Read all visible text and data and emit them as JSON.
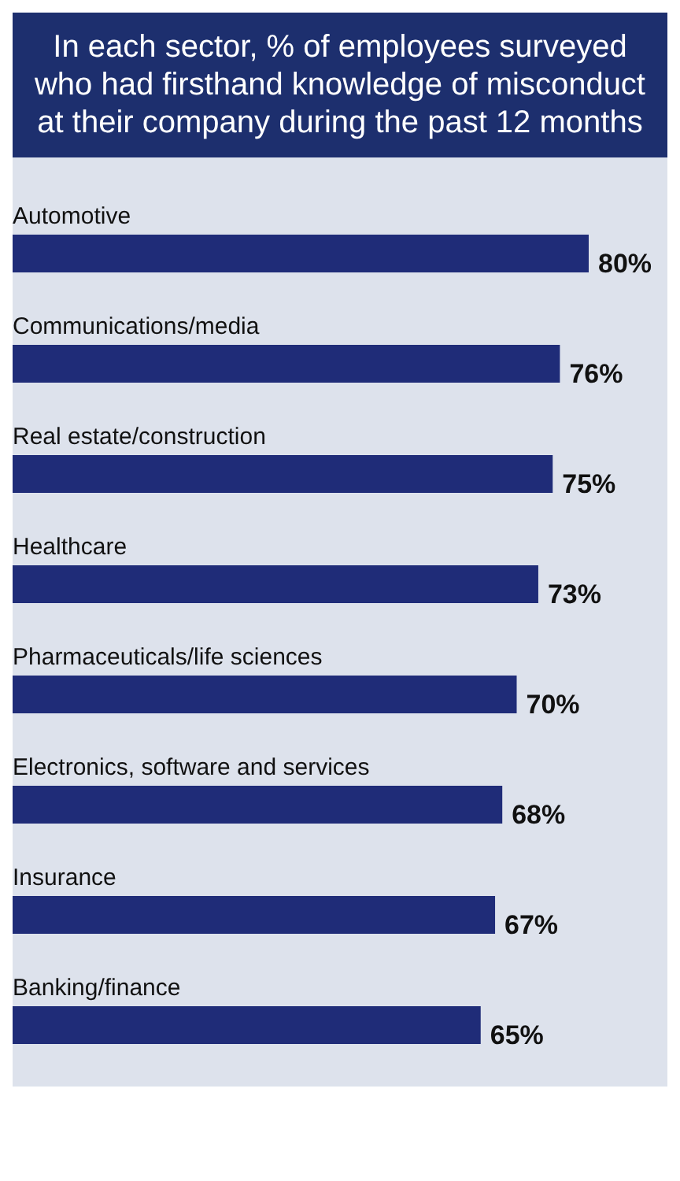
{
  "chart_data": {
    "type": "bar",
    "orientation": "horizontal",
    "title": "In each sector, % of employees surveyed who had firsthand knowledge of misconduct at their company during the past 12 months",
    "categories": [
      "Automotive",
      "Communications/media",
      "Real estate/construction",
      "Healthcare",
      "Pharmaceuticals/life sciences",
      "Electronics, software and services",
      "Insurance",
      "Banking/finance"
    ],
    "values": [
      80,
      76,
      75,
      73,
      70,
      68,
      67,
      65
    ],
    "value_labels": [
      "80%",
      "76%",
      "75%",
      "73%",
      "70%",
      "68%",
      "67%",
      "65%"
    ],
    "color": "#1f2c78"
  }
}
